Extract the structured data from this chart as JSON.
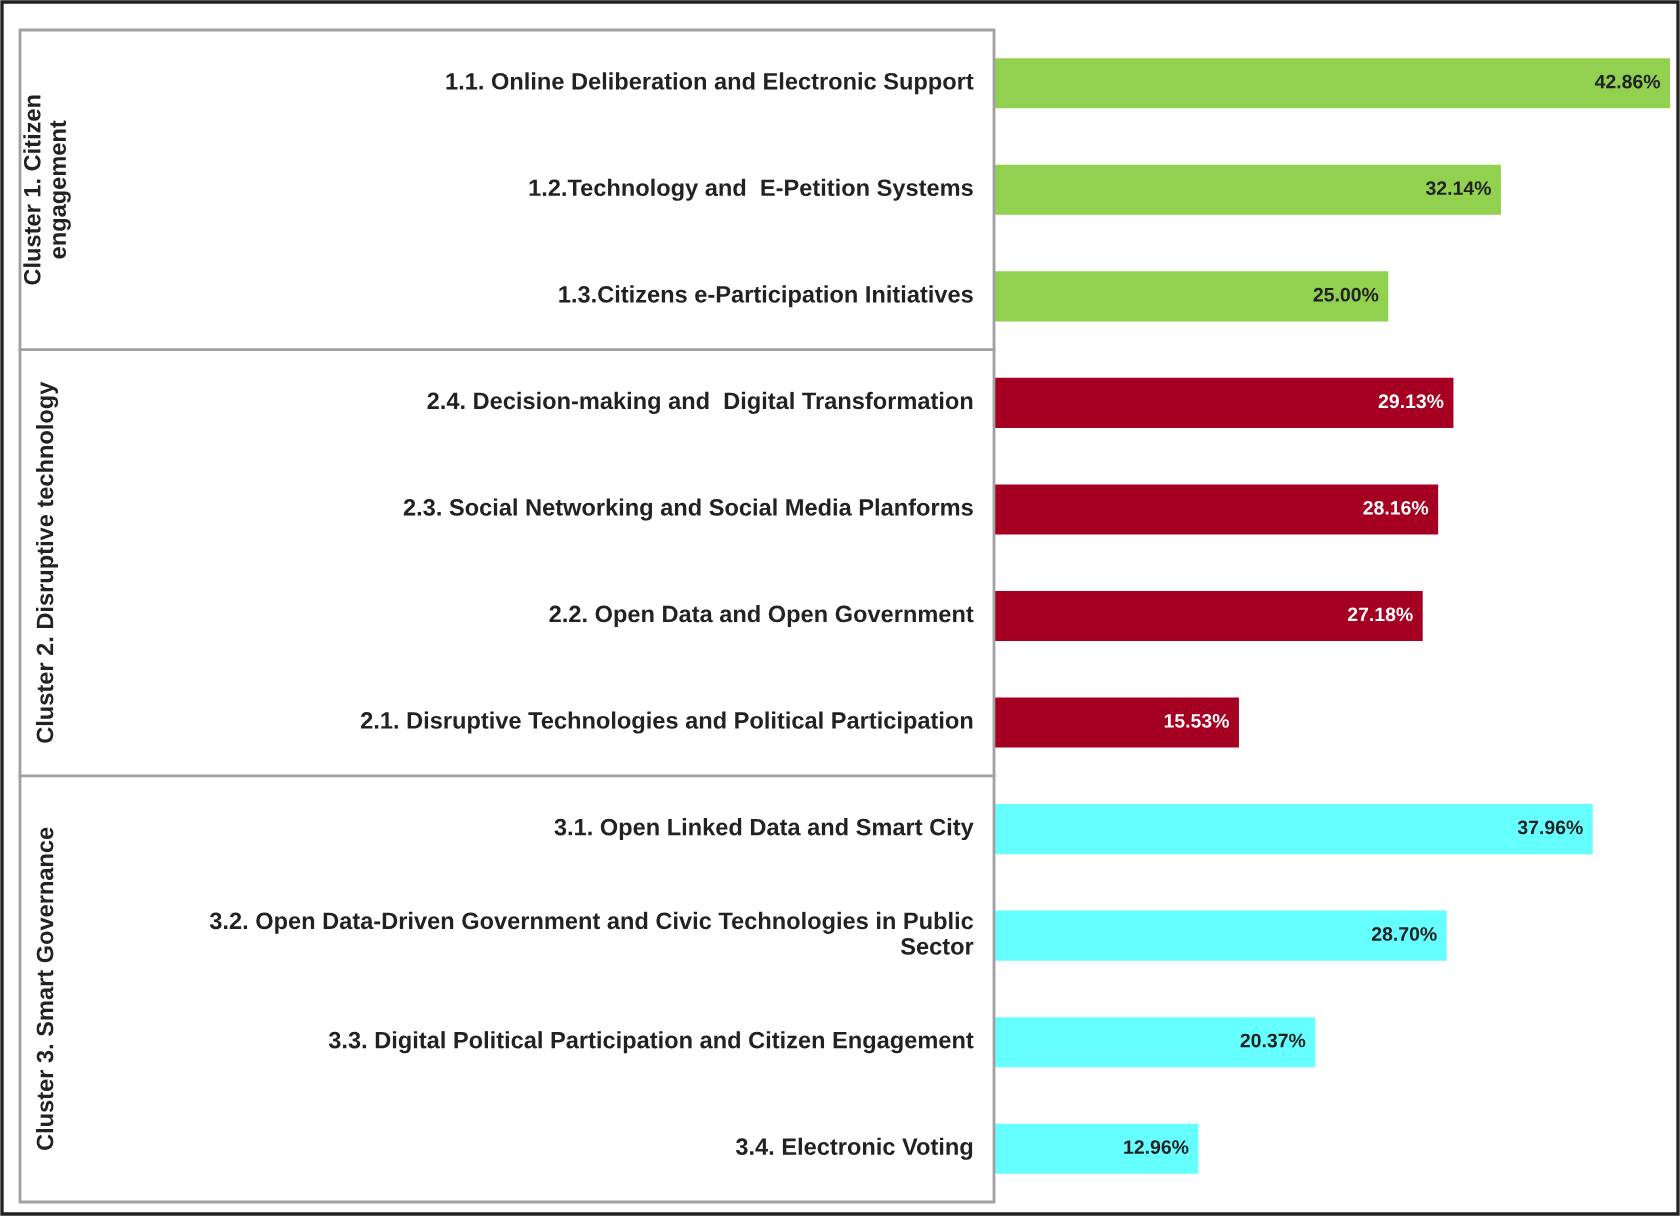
{
  "chart_data": {
    "type": "bar",
    "orientation": "horizontal",
    "categories": [
      "1.1. Online Deliberation and Electronic Support",
      "1.2.Technology and  E-Petition Systems",
      "1.3.Citizens e-Participation Initiatives",
      "2.4. Decision-making and  Digital Transformation",
      "2.3. Social Networking and Social Media Planforms",
      "2.2. Open Data and Open Government",
      "2.1. Disruptive Technologies and Political Participation",
      "3.1. Open Linked Data and Smart City",
      "3.2. Open Data-Driven Government and Civic Technologies in Public\nSector",
      "3.3. Digital Political Participation and Citizen Engagement",
      "3.4. Electronic Voting"
    ],
    "values": [
      42.86,
      32.14,
      25.0,
      29.13,
      28.16,
      27.18,
      15.53,
      37.96,
      28.7,
      20.37,
      12.96
    ],
    "value_labels": [
      "42.86%",
      "32.14%",
      "25.00%",
      "29.13%",
      "28.16%",
      "27.18%",
      "15.53%",
      "37.96%",
      "28.70%",
      "20.37%",
      "12.96%"
    ],
    "colors": [
      "#92d050",
      "#92d050",
      "#92d050",
      "#a50021",
      "#a50021",
      "#a50021",
      "#a50021",
      "#66ffff",
      "#66ffff",
      "#66ffff",
      "#66ffff"
    ],
    "annotations": [
      "Cluster 1. Citizen\nengagement",
      "Cluster 2. Disruptive technology",
      "Cluster 3. Smart Governance"
    ]
  }
}
